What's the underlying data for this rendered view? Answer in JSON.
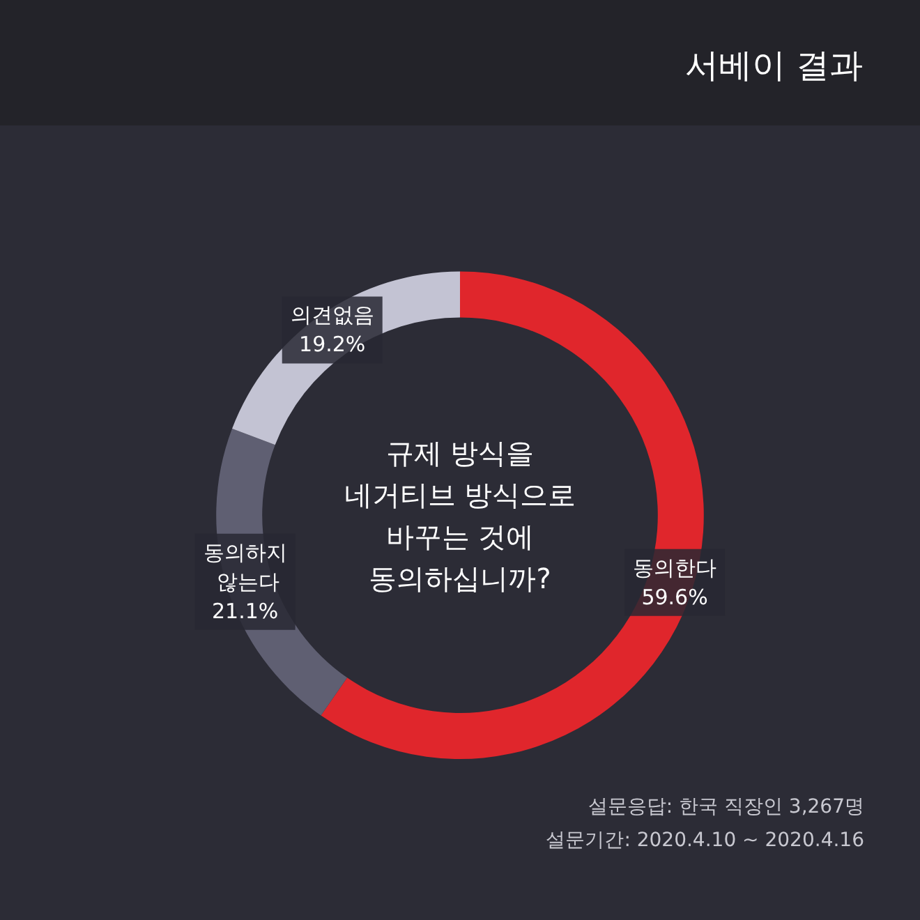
{
  "chart_data": {
    "type": "donut",
    "title": "서베이 결과",
    "subtitle": "규제 방식을\n네거티브 방식으로\n바꾸는 것에\n동의하십니까?",
    "categories": [
      "동의한다",
      "동의하지 않는다",
      "의견없음"
    ],
    "values": [
      59.6,
      21.1,
      19.2
    ],
    "value_labels": [
      "59.6%",
      "21.1%",
      "19.2%"
    ],
    "colors": [
      "#e0262c",
      "#5f5f72",
      "#c3c3d3"
    ],
    "legend": false,
    "annotations": [
      "설문응답: 한국 직장인 3,267명",
      "설문기간: 2020.4.10 ~ 2020.4.16"
    ]
  }
}
